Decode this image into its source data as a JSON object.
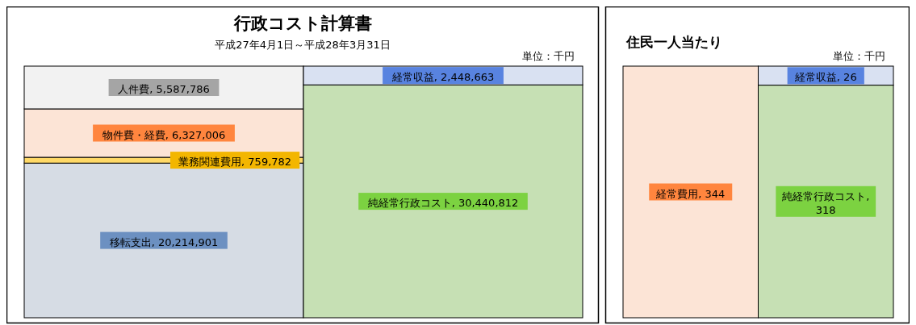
{
  "chart_data": [
    {
      "type": "bar",
      "stacked": true,
      "title": "行政コスト計算書",
      "subtitle": "平成27年4月1日～平成28年3月31日",
      "annotations": [
        "単位：千円"
      ],
      "categories": [
        null,
        null
      ],
      "series": [
        {
          "color": "#d6dce4",
          "values": [
            20214901,
            null
          ],
          "value_labels": [
            "移転支出, 20,214,901",
            null
          ]
        },
        {
          "color": "#ffd966",
          "values": [
            759782,
            null
          ],
          "value_labels": [
            "業務関連費用, 759,782",
            null
          ]
        },
        {
          "color": "#fce4d6",
          "values": [
            6327006,
            null
          ],
          "value_labels": [
            "物件費・経費, 6,327,006",
            null
          ]
        },
        {
          "color": "#f2f2f2",
          "values": [
            5587786,
            null
          ],
          "value_labels": [
            "人件費, 5,587,786",
            null
          ]
        },
        {
          "color": "#c6e0b4",
          "values": [
            null,
            30440812
          ],
          "value_labels": [
            null,
            "純経常行政コスト, 30,440,812"
          ]
        },
        {
          "color": "#d9e1f2",
          "values": [
            null,
            2448663
          ],
          "value_labels": [
            null,
            "経常収益, 2,448,663"
          ]
        }
      ]
    },
    {
      "type": "bar",
      "stacked": true,
      "title": "住民一人当たり",
      "annotations": [
        "単位：千円"
      ],
      "categories": [
        null,
        null
      ],
      "series": [
        {
          "color": "#fce4d6",
          "values": [
            344,
            null
          ],
          "value_labels": [
            "経常費用, 344",
            null
          ]
        },
        {
          "color": "#c6e0b4",
          "values": [
            null,
            318
          ],
          "value_labels": [
            null,
            "純経常行政コスト, 318"
          ]
        },
        {
          "color": "#d9e1f2",
          "values": [
            null,
            26
          ],
          "value_labels": [
            null,
            "経常収益, 26"
          ]
        }
      ]
    }
  ]
}
